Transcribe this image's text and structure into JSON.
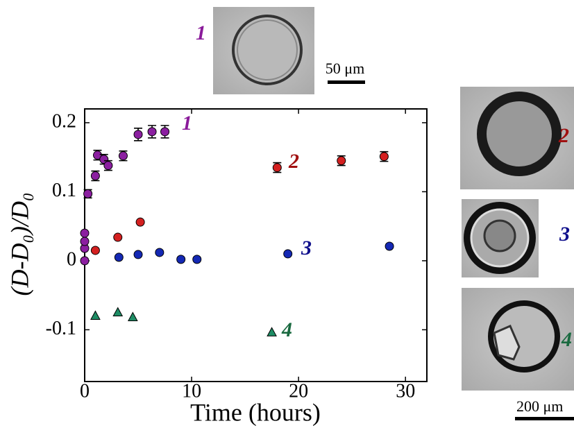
{
  "chart_data": {
    "type": "scatter",
    "x_label": "Time (hours)",
    "y_label": "(D-D₀)/D₀",
    "xlim": [
      0,
      32
    ],
    "xticks": [
      0,
      10,
      20,
      30
    ],
    "ylim": [
      -0.175,
      0.22
    ],
    "yticks": [
      -0.1,
      0,
      0.1,
      0.2
    ],
    "series": [
      {
        "name": "1",
        "color": "#8b1fa0",
        "label_color": "#8a1a9a",
        "marker": "circle",
        "x": [
          0,
          0,
          0,
          0,
          0.3,
          1,
          1.2,
          1.8,
          2.2,
          3.6,
          5,
          6.3,
          7.5
        ],
        "values": [
          0,
          0.018,
          0.028,
          0.04,
          0.097,
          0.123,
          0.153,
          0.147,
          0.138,
          0.152,
          0.183,
          0.187,
          0.187
        ],
        "errors": [
          null,
          null,
          null,
          null,
          0.006,
          0.007,
          0.007,
          0.007,
          0.007,
          0.007,
          0.009,
          0.009,
          0.009
        ]
      },
      {
        "name": "2",
        "color": "#d42020",
        "label_color": "#a01010",
        "marker": "circle",
        "x": [
          1,
          3.1,
          5.2,
          18,
          24,
          28
        ],
        "values": [
          0.015,
          0.034,
          0.056,
          0.135,
          0.145,
          0.151
        ],
        "errors": [
          null,
          null,
          null,
          0.007,
          0.007,
          0.007
        ]
      },
      {
        "name": "3",
        "color": "#1428b4",
        "label_color": "#10108c",
        "marker": "circle",
        "x": [
          3.2,
          5,
          7,
          9,
          10.5,
          19,
          28.5
        ],
        "values": [
          0.005,
          0.009,
          0.012,
          0.002,
          0.002,
          0.01,
          0.021
        ]
      },
      {
        "name": "4",
        "color": "#1e8c64",
        "label_color": "#1a6a40",
        "marker": "triangle",
        "x": [
          1,
          3.1,
          4.5,
          17.5
        ],
        "values": [
          -0.08,
          -0.075,
          -0.082,
          -0.104
        ]
      }
    ]
  },
  "insets": [
    {
      "label": "1",
      "color": "#8a1a9a"
    },
    {
      "label": "2",
      "color": "#a01010"
    },
    {
      "label": "3",
      "color": "#10108c"
    },
    {
      "label": "4",
      "color": "#1a6a40"
    }
  ],
  "scale_bars": [
    "50 μm",
    "200 μm"
  ]
}
